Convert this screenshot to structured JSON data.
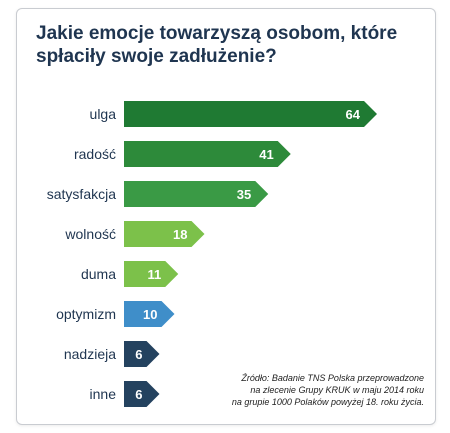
{
  "title_lines": [
    "Jakie emocje towarzyszą osobom, które",
    "spłaciły swoje zadłużenie?"
  ],
  "source_lines": [
    "Źródło: Badanie TNS Polska przeprowadzone",
    "na zlecenie Grupy KRUK w maju 2014 roku",
    "na grupie 1000 Polaków powyżej 18. roku życia."
  ],
  "chart_data": {
    "type": "bar",
    "orientation": "horizontal",
    "categories": [
      "ulga",
      "radość",
      "satysfakcja",
      "wolność",
      "duma",
      "optymizm",
      "nadzieja",
      "inne"
    ],
    "values": [
      64,
      41,
      35,
      18,
      11,
      10,
      6,
      6
    ],
    "colors": [
      "#1f7a33",
      "#2d8a3a",
      "#3a9a45",
      "#7cc14a",
      "#7cc14a",
      "#3f8ec9",
      "#24425f",
      "#24425f"
    ],
    "xlim": [
      0,
      64
    ],
    "data_labels": true,
    "grid": false
  }
}
